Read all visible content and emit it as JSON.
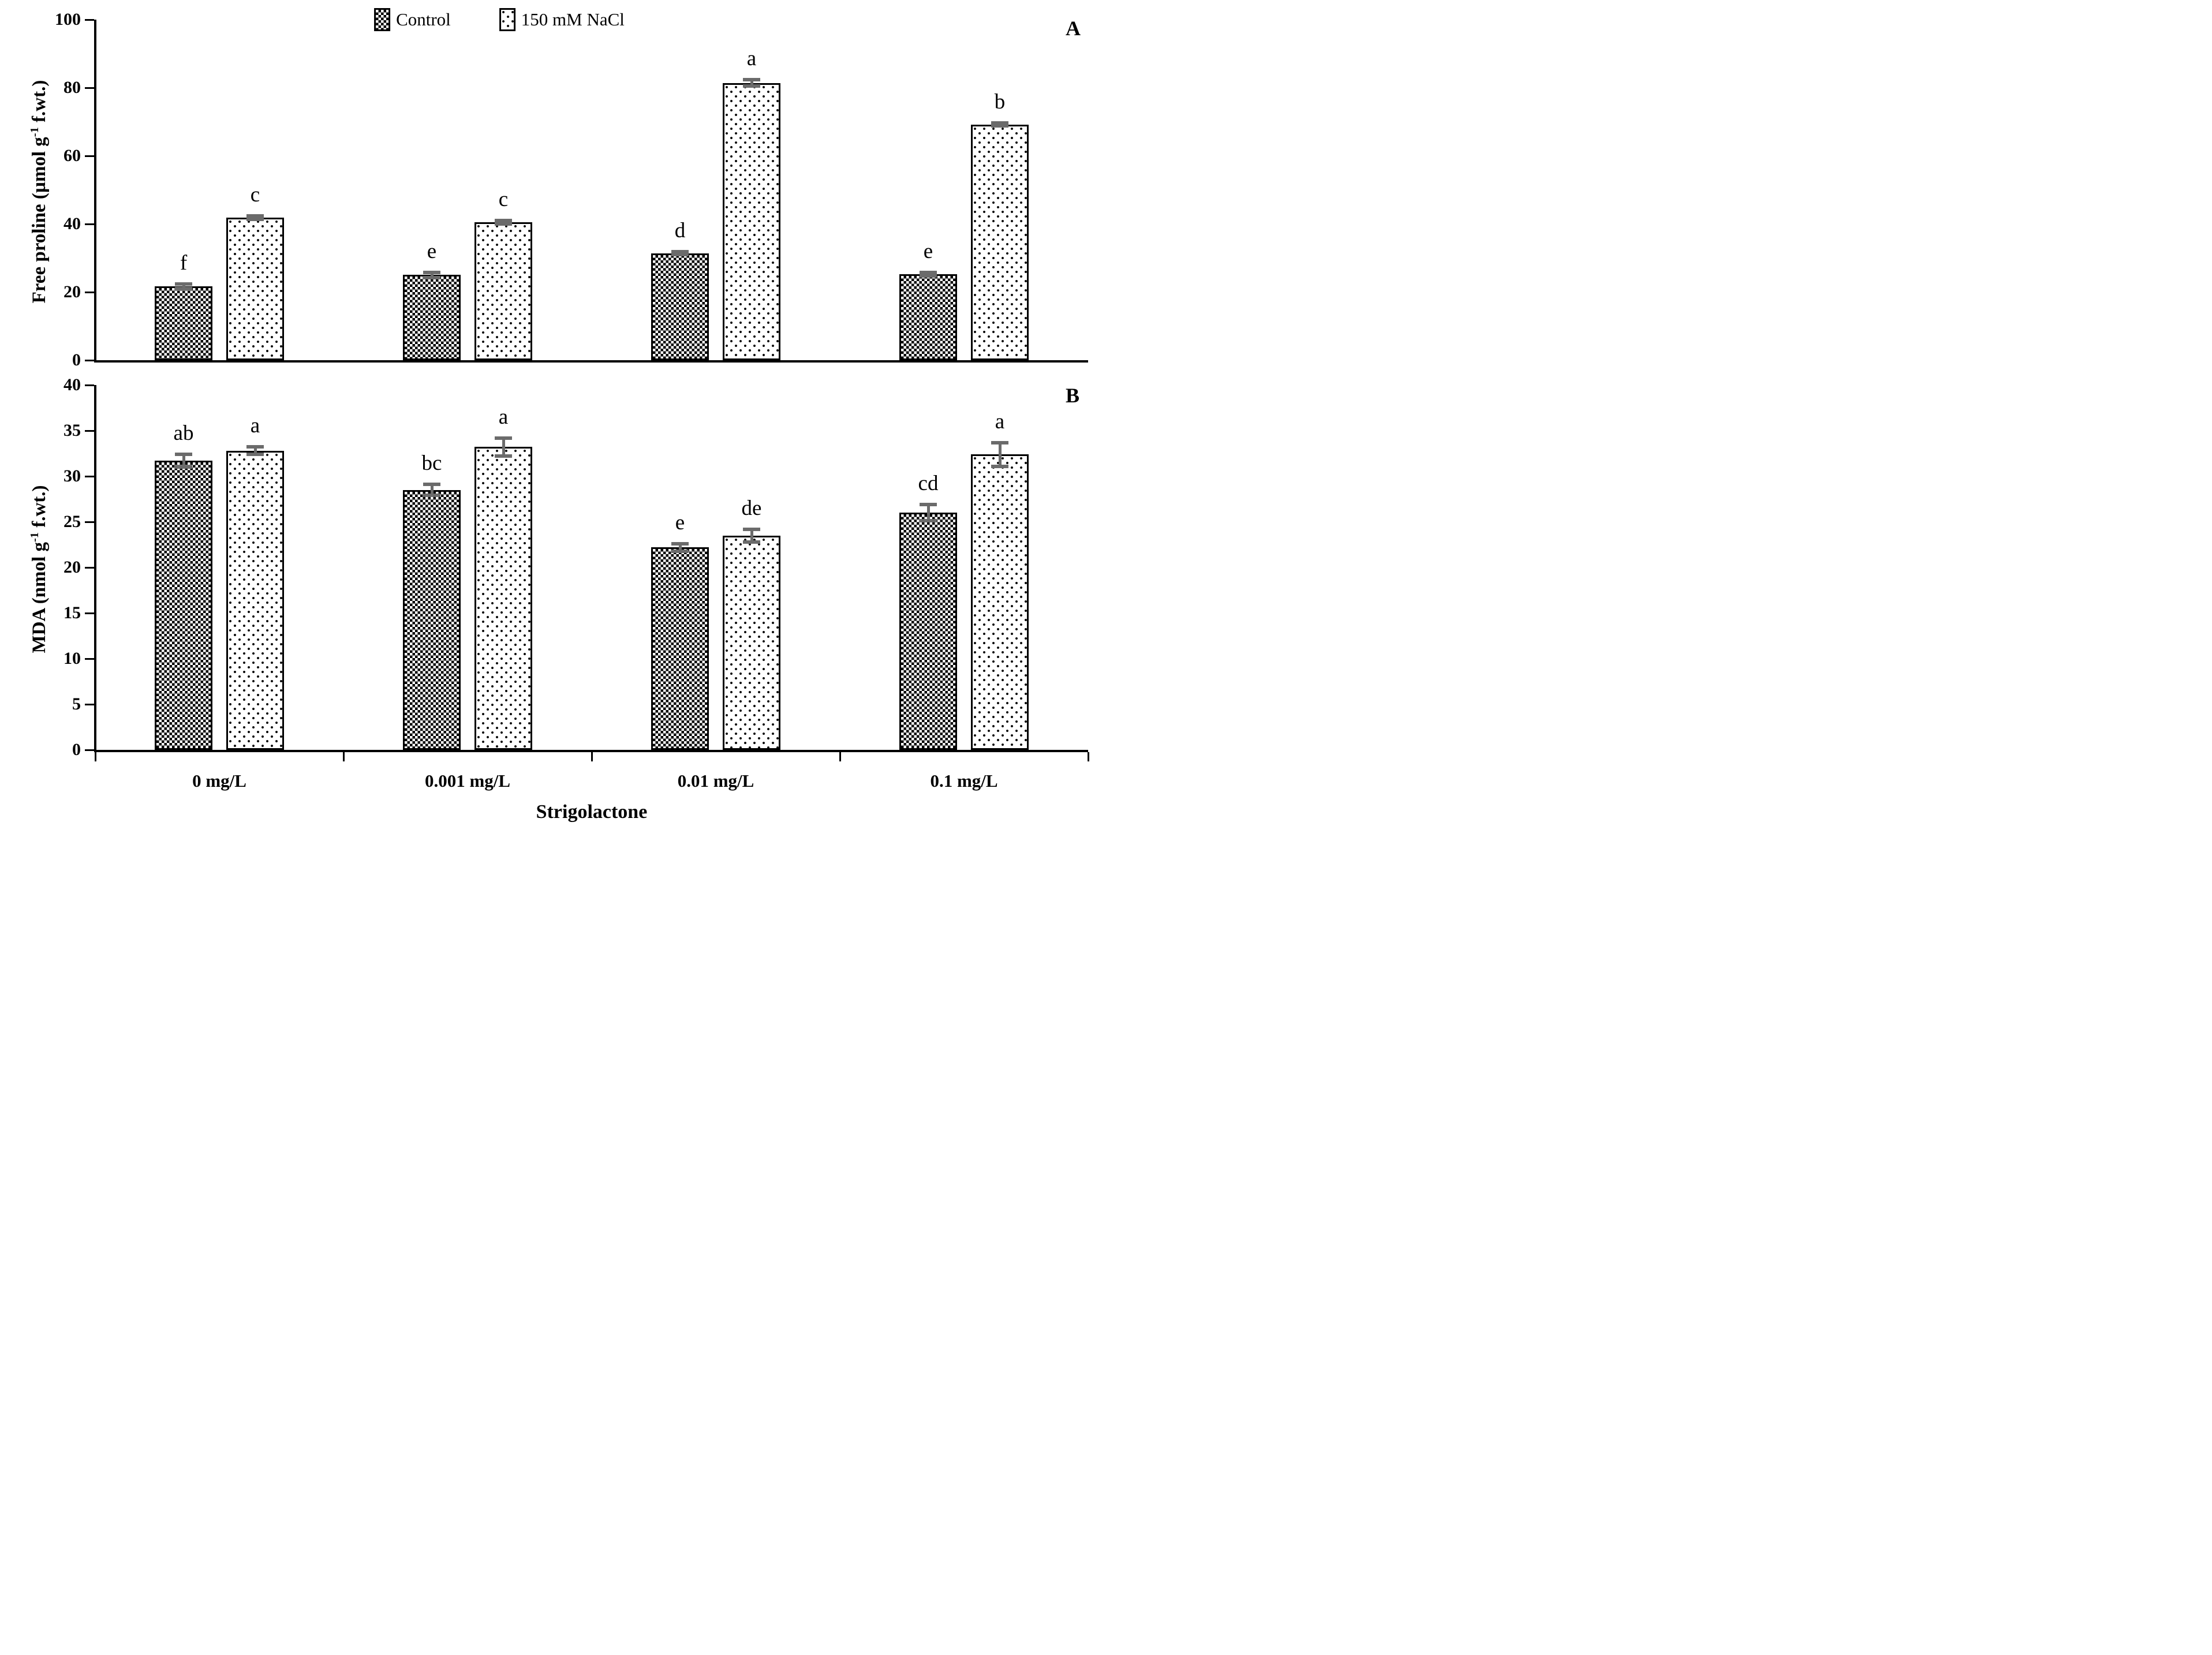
{
  "legend": {
    "items": [
      {
        "label": "Control",
        "pattern": "checker"
      },
      {
        "label": "150 mM NaCl",
        "pattern": "dots"
      }
    ]
  },
  "x_axis": {
    "title": "Strigolactone",
    "categories": [
      "0 mg/L",
      "0.001 mg/L",
      "0.01 mg/L",
      "0.1 mg/L"
    ]
  },
  "chart_data": [
    {
      "type": "bar",
      "panel_label": "A",
      "categories": [
        "0 mg/L",
        "0.001 mg/L",
        "0.01 mg/L",
        "0.1 mg/L"
      ],
      "y_axis": {
        "title_prefix": "Free proline (µmol g",
        "title_sup": "-1",
        "title_suffix": " f.wt.)",
        "min": 0,
        "max": 100,
        "step": 20
      },
      "grid": false,
      "legend_position": "top-center",
      "series": [
        {
          "name": "Control",
          "pattern": "checker",
          "values": [
            21.7,
            25.0,
            31.4,
            25.3
          ],
          "errors": [
            0.6,
            0.8,
            0.4,
            0.5
          ],
          "letters": [
            "f",
            "e",
            "d",
            "e"
          ]
        },
        {
          "name": "150 mM NaCl",
          "pattern": "dots",
          "values": [
            41.9,
            40.5,
            81.4,
            69.2
          ],
          "errors": [
            0.5,
            0.5,
            0.9,
            0.4
          ],
          "letters": [
            "c",
            "c",
            "a",
            "b"
          ]
        }
      ]
    },
    {
      "type": "bar",
      "panel_label": "B",
      "categories": [
        "0 mg/L",
        "0.001 mg/L",
        "0.01 mg/L",
        "0.1 mg/L"
      ],
      "y_axis": {
        "title_prefix": "MDA (nmol g",
        "title_sup": "-1",
        "title_suffix": " f.wt.)",
        "min": 0,
        "max": 40,
        "step": 5
      },
      "grid": false,
      "legend_position": "shared-top",
      "series": [
        {
          "name": "Control",
          "pattern": "checker",
          "values": [
            31.7,
            28.5,
            22.2,
            26.0
          ],
          "errors": [
            0.7,
            0.6,
            0.4,
            0.9
          ],
          "letters": [
            "ab",
            "bc",
            "e",
            "cd"
          ]
        },
        {
          "name": "150 mM NaCl",
          "pattern": "dots",
          "values": [
            32.8,
            33.2,
            23.5,
            32.4
          ],
          "errors": [
            0.4,
            1.0,
            0.7,
            1.3
          ],
          "letters": [
            "a",
            "a",
            "de",
            "a"
          ]
        }
      ]
    }
  ],
  "colors": {
    "bar_border": "#000000",
    "error_bar": "#6b6b6b",
    "text": "#000000",
    "background": "#ffffff"
  }
}
